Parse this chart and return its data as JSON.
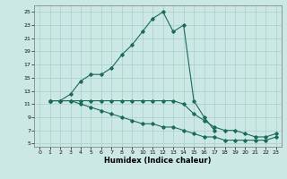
{
  "xlabel": "Humidex (Indice chaleur)",
  "bg_color": "#cce8e4",
  "grid_color": "#aacfcb",
  "line_color": "#1a6b5a",
  "xlim": [
    -0.5,
    23.5
  ],
  "ylim": [
    4.5,
    26
  ],
  "xticks": [
    0,
    1,
    2,
    3,
    4,
    5,
    6,
    7,
    8,
    9,
    10,
    11,
    12,
    13,
    14,
    15,
    16,
    17,
    18,
    19,
    20,
    21,
    22,
    23
  ],
  "yticks": [
    5,
    7,
    9,
    11,
    13,
    15,
    17,
    19,
    21,
    23,
    25
  ],
  "line1_x": [
    1,
    2,
    3,
    4,
    5,
    6,
    7,
    8,
    9,
    10,
    11,
    12,
    13,
    14,
    15,
    16,
    17
  ],
  "line1_y": [
    11.5,
    11.5,
    12.5,
    14.5,
    15.5,
    15.5,
    16.5,
    18.5,
    20.0,
    22.0,
    24.0,
    25.0,
    22.0,
    23.0,
    11.5,
    9.0,
    7.0
  ],
  "line2_x": [
    1,
    2,
    3,
    4,
    5,
    6,
    7,
    8,
    9,
    10,
    11,
    12,
    13,
    14,
    15,
    16,
    17,
    18,
    19,
    20,
    21,
    22,
    23
  ],
  "line2_y": [
    11.5,
    11.5,
    11.5,
    11.5,
    11.5,
    11.5,
    11.5,
    11.5,
    11.5,
    11.5,
    11.5,
    11.5,
    11.5,
    11.0,
    9.5,
    8.5,
    7.5,
    7.0,
    7.0,
    6.5,
    6.0,
    6.0,
    6.5
  ],
  "line3_x": [
    1,
    2,
    3,
    4,
    5,
    6,
    7,
    8,
    9,
    10,
    11,
    12,
    13,
    14,
    15,
    16,
    17,
    18,
    19,
    20,
    21,
    22,
    23
  ],
  "line3_y": [
    11.5,
    11.5,
    11.5,
    11.0,
    10.5,
    10.0,
    9.5,
    9.0,
    8.5,
    8.0,
    8.0,
    7.5,
    7.5,
    7.0,
    6.5,
    6.0,
    6.0,
    5.5,
    5.5,
    5.5,
    5.5,
    5.5,
    6.0
  ]
}
